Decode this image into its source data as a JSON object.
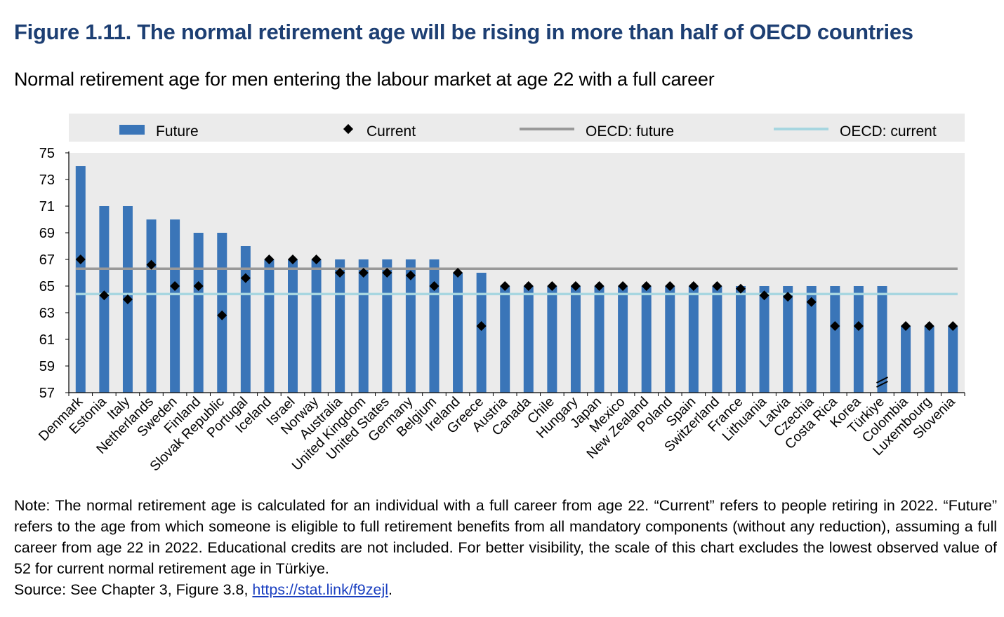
{
  "figure": {
    "title": "Figure 1.11. The normal retirement age will be rising in more than half of OECD countries",
    "subtitle": "Normal retirement age for men entering the labour market at age 22 with a full career"
  },
  "legend": {
    "future": "Future",
    "current": "Current",
    "oecd_future": "OECD: future",
    "oecd_current": "OECD: current"
  },
  "colors": {
    "bar": "#3a75b8",
    "marker": "#000000",
    "oecd_future": "#999999",
    "oecd_current": "#a7d6e0",
    "plot_bg": "#ebebeb",
    "title": "#1d3f73"
  },
  "chart_data": {
    "type": "bar",
    "categories": [
      "Denmark",
      "Estonia",
      "Italy",
      "Netherlands",
      "Sweden",
      "Finland",
      "Slovak Republic",
      "Portugal",
      "Iceland",
      "Israel",
      "Norway",
      "Australia",
      "United Kingdom",
      "United States",
      "Germany",
      "Belgium",
      "Ireland",
      "Greece",
      "Austria",
      "Canada",
      "Chile",
      "Hungary",
      "Japan",
      "Mexico",
      "New Zealand",
      "Poland",
      "Spain",
      "Switzerland",
      "France",
      "Lithuania",
      "Latvia",
      "Czechia",
      "Costa Rica",
      "Korea",
      "Türkiye",
      "Colombia",
      "Luxembourg",
      "Slovenia"
    ],
    "series": [
      {
        "name": "Future",
        "kind": "bar",
        "values": [
          74,
          71,
          71,
          70,
          70,
          69,
          69,
          68,
          67,
          67,
          67,
          67,
          67,
          67,
          67,
          67,
          66,
          66,
          65,
          65,
          65,
          65,
          65,
          65,
          65,
          65,
          65,
          65,
          65,
          65,
          65,
          65,
          65,
          65,
          65,
          62,
          62,
          62
        ]
      },
      {
        "name": "Current",
        "kind": "marker",
        "values": [
          67,
          64.3,
          64,
          66.6,
          65,
          65,
          62.8,
          65.6,
          67,
          67,
          67,
          66,
          66,
          66,
          65.8,
          65,
          66,
          62,
          65,
          65,
          65,
          65,
          65,
          65,
          65,
          65,
          65,
          65,
          64.8,
          64.3,
          64.2,
          63.8,
          62,
          62,
          52,
          62,
          62,
          62
        ]
      },
      {
        "name": "OECD: future",
        "kind": "line",
        "value": 66.3
      },
      {
        "name": "OECD: current",
        "kind": "line",
        "value": 64.4
      }
    ],
    "ylim": [
      57,
      75
    ],
    "yticks": [
      57,
      59,
      61,
      63,
      65,
      67,
      69,
      71,
      73,
      75
    ],
    "axis_break": {
      "category": "Türkiye",
      "value": 52
    },
    "grid": false,
    "legend_position": "top"
  },
  "note": {
    "text": "Note: The normal retirement age is calculated for an individual with a full career from age 22. “Current” refers to people retiring in 2022. “Future” refers to the age from which someone is eligible to full retirement benefits from all mandatory components (without any reduction), assuming a full career from age 22 in 2022. Educational credits are not included. For better visibility, the scale of this chart excludes the lowest observed value of 52 for current normal retirement age in Türkiye.",
    "source_prefix": "Source: See Chapter 3, Figure 3.8, ",
    "source_link": "https://stat.link/f9zejl",
    "source_suffix": "."
  }
}
